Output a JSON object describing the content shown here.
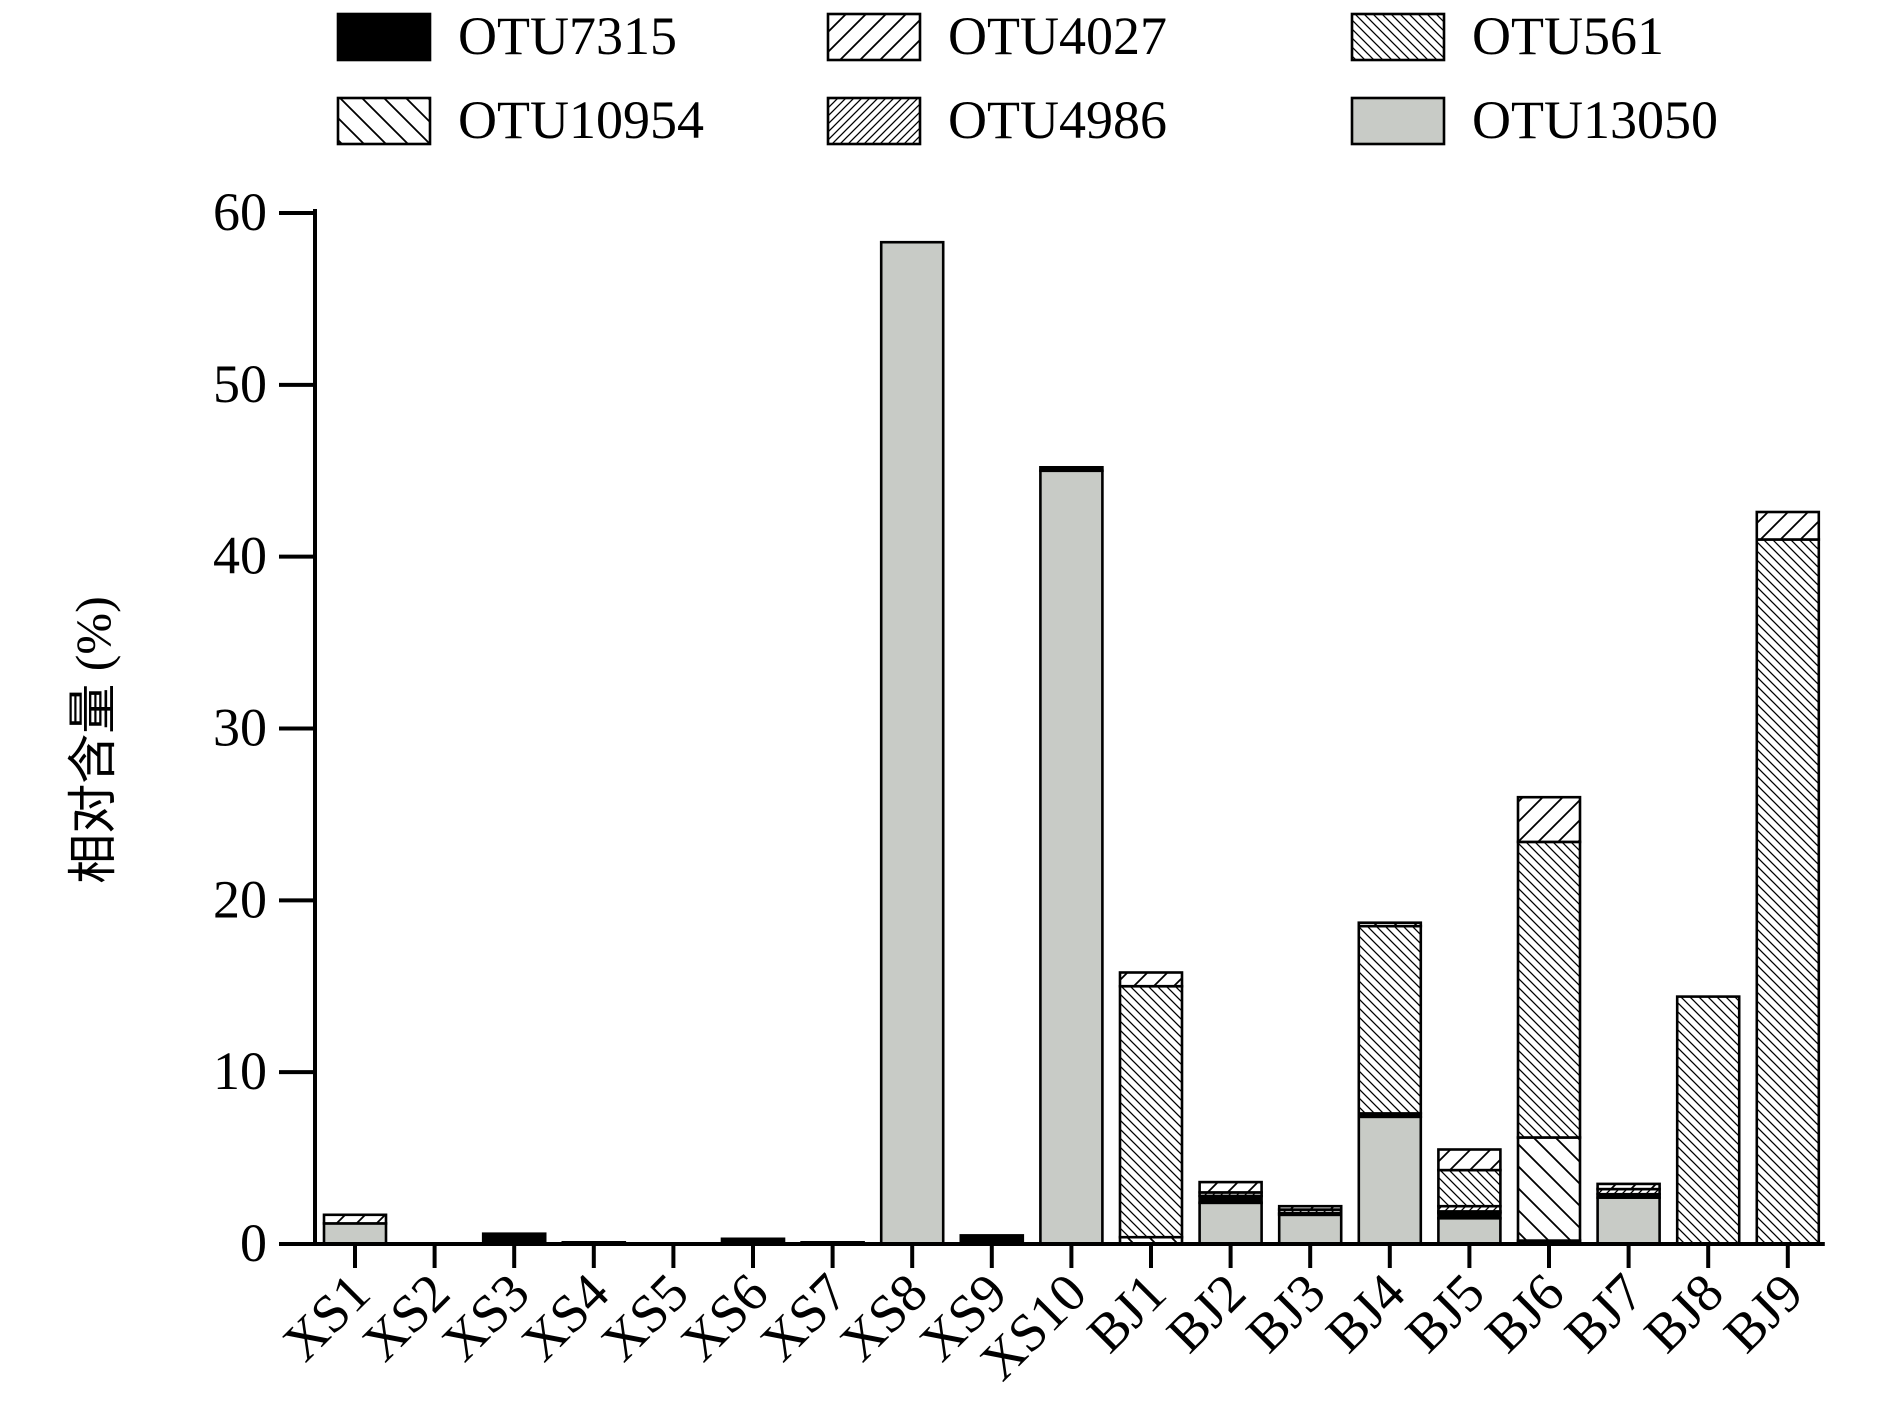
{
  "chart_data": {
    "type": "bar",
    "stacked": true,
    "title": "",
    "xlabel": "",
    "ylabel": "相对含量 (%)",
    "ylim": [
      0,
      60
    ],
    "yticks": [
      0,
      10,
      20,
      30,
      40,
      50,
      60
    ],
    "grid": false,
    "legend_position": "top",
    "categories": [
      "XS1",
      "XS2",
      "XS3",
      "XS4",
      "XS5",
      "XS6",
      "XS7",
      "XS8",
      "XS9",
      "XS10",
      "BJ1",
      "BJ2",
      "BJ3",
      "BJ4",
      "BJ5",
      "BJ6",
      "BJ7",
      "BJ8",
      "BJ9"
    ],
    "series": [
      {
        "name": "OTU13050",
        "pattern": "solid-gray",
        "color": "#c8cbc6",
        "values": [
          1.2,
          0,
          0,
          0,
          0,
          0,
          0,
          58.3,
          0,
          45.0,
          0,
          2.4,
          1.7,
          7.4,
          1.5,
          0,
          2.7,
          0,
          0
        ]
      },
      {
        "name": "OTU7315",
        "pattern": "solid-black",
        "color": "#000000",
        "values": [
          0,
          0,
          0.6,
          0.1,
          0,
          0.3,
          0.1,
          0,
          0.5,
          0.2,
          0,
          0.4,
          0.1,
          0.2,
          0.3,
          0.2,
          0.2,
          0,
          0
        ]
      },
      {
        "name": "OTU10954",
        "pattern": "sparse-backslash",
        "color": "#ffffff",
        "values": [
          0,
          0,
          0,
          0,
          0,
          0,
          0,
          0,
          0,
          0,
          0.4,
          0,
          0,
          0,
          0.1,
          6.0,
          0,
          0,
          0
        ]
      },
      {
        "name": "OTU4986",
        "pattern": "dense-slash",
        "color": "#ffffff",
        "values": [
          0,
          0,
          0,
          0,
          0,
          0,
          0,
          0,
          0,
          0,
          0,
          0.2,
          0.2,
          0,
          0.3,
          0,
          0.3,
          0,
          0
        ]
      },
      {
        "name": "OTU561",
        "pattern": "dense-backslash",
        "color": "#ffffff",
        "values": [
          0,
          0,
          0,
          0,
          0,
          0,
          0,
          0,
          0,
          0,
          14.6,
          0,
          0,
          10.9,
          2.1,
          17.2,
          0,
          14.4,
          41.0
        ]
      },
      {
        "name": "OTU4027",
        "pattern": "sparse-slash",
        "color": "#ffffff",
        "values": [
          0.5,
          0,
          0,
          0,
          0,
          0,
          0,
          0,
          0,
          0,
          0.8,
          0.6,
          0.2,
          0.2,
          1.2,
          2.6,
          0.3,
          0,
          1.6
        ]
      }
    ],
    "legend_order": [
      "OTU7315",
      "OTU4027",
      "OTU561",
      "OTU10954",
      "OTU4986",
      "OTU13050"
    ]
  }
}
